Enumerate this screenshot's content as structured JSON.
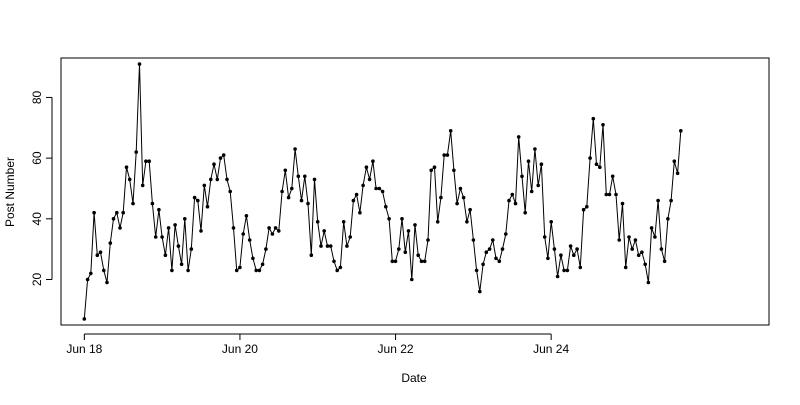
{
  "chart_data": {
    "type": "line",
    "title": "",
    "xlabel": "Date",
    "ylabel": "Post Number",
    "x_ticks": [
      "Jun 18",
      "Jun 20",
      "Jun 22",
      "Jun 24"
    ],
    "y_ticks": [
      20,
      40,
      60,
      80
    ],
    "xlim_days": [
      17.7,
      26.8
    ],
    "ylim": [
      5,
      93
    ],
    "grid": false,
    "legend": "none",
    "line_color": "#000000",
    "series": [
      {
        "points": [
          [
            "Jun 18 00:00",
            7
          ],
          [
            "Jun 18 01:00",
            20
          ],
          [
            "Jun 18 02:00",
            22
          ],
          [
            "Jun 18 03:00",
            42
          ],
          [
            "Jun 18 04:00",
            28
          ],
          [
            "Jun 18 05:00",
            29
          ],
          [
            "Jun 18 06:00",
            23
          ],
          [
            "Jun 18 07:00",
            19
          ],
          [
            "Jun 18 08:00",
            32
          ],
          [
            "Jun 18 09:00",
            40
          ],
          [
            "Jun 18 10:00",
            42
          ],
          [
            "Jun 18 11:00",
            37
          ],
          [
            "Jun 18 12:00",
            42
          ],
          [
            "Jun 18 13:00",
            57
          ],
          [
            "Jun 18 14:00",
            53
          ],
          [
            "Jun 18 15:00",
            45
          ],
          [
            "Jun 18 16:00",
            62
          ],
          [
            "Jun 18 17:00",
            91
          ],
          [
            "Jun 18 18:00",
            51
          ],
          [
            "Jun 18 19:00",
            59
          ],
          [
            "Jun 18 20:00",
            59
          ],
          [
            "Jun 18 21:00",
            45
          ],
          [
            "Jun 18 22:00",
            34
          ],
          [
            "Jun 18 23:00",
            43
          ],
          [
            "Jun 19 00:00",
            34
          ],
          [
            "Jun 19 01:00",
            28
          ],
          [
            "Jun 19 02:00",
            37
          ],
          [
            "Jun 19 03:00",
            23
          ],
          [
            "Jun 19 04:00",
            38
          ],
          [
            "Jun 19 05:00",
            31
          ],
          [
            "Jun 19 06:00",
            25
          ],
          [
            "Jun 19 07:00",
            40
          ],
          [
            "Jun 19 08:00",
            23
          ],
          [
            "Jun 19 09:00",
            30
          ],
          [
            "Jun 19 10:00",
            47
          ],
          [
            "Jun 19 11:00",
            46
          ],
          [
            "Jun 19 12:00",
            36
          ],
          [
            "Jun 19 13:00",
            51
          ],
          [
            "Jun 19 14:00",
            44
          ],
          [
            "Jun 19 15:00",
            53
          ],
          [
            "Jun 19 16:00",
            58
          ],
          [
            "Jun 19 17:00",
            53
          ],
          [
            "Jun 19 18:00",
            60
          ],
          [
            "Jun 19 19:00",
            61
          ],
          [
            "Jun 19 20:00",
            53
          ],
          [
            "Jun 19 21:00",
            49
          ],
          [
            "Jun 19 22:00",
            37
          ],
          [
            "Jun 19 23:00",
            23
          ],
          [
            "Jun 20 00:00",
            24
          ],
          [
            "Jun 20 01:00",
            35
          ],
          [
            "Jun 20 02:00",
            41
          ],
          [
            "Jun 20 03:00",
            33
          ],
          [
            "Jun 20 04:00",
            27
          ],
          [
            "Jun 20 05:00",
            23
          ],
          [
            "Jun 20 06:00",
            23
          ],
          [
            "Jun 20 07:00",
            25
          ],
          [
            "Jun 20 08:00",
            30
          ],
          [
            "Jun 20 09:00",
            37
          ],
          [
            "Jun 20 10:00",
            35
          ],
          [
            "Jun 20 11:00",
            37
          ],
          [
            "Jun 20 12:00",
            36
          ],
          [
            "Jun 20 13:00",
            49
          ],
          [
            "Jun 20 14:00",
            56
          ],
          [
            "Jun 20 15:00",
            47
          ],
          [
            "Jun 20 16:00",
            50
          ],
          [
            "Jun 20 17:00",
            63
          ],
          [
            "Jun 20 18:00",
            54
          ],
          [
            "Jun 20 19:00",
            46
          ],
          [
            "Jun 20 20:00",
            54
          ],
          [
            "Jun 20 21:00",
            45
          ],
          [
            "Jun 20 22:00",
            28
          ],
          [
            "Jun 20 23:00",
            53
          ],
          [
            "Jun 21 00:00",
            39
          ],
          [
            "Jun 21 01:00",
            31
          ],
          [
            "Jun 21 02:00",
            36
          ],
          [
            "Jun 21 03:00",
            31
          ],
          [
            "Jun 21 04:00",
            31
          ],
          [
            "Jun 21 05:00",
            26
          ],
          [
            "Jun 21 06:00",
            23
          ],
          [
            "Jun 21 07:00",
            24
          ],
          [
            "Jun 21 08:00",
            39
          ],
          [
            "Jun 21 09:00",
            31
          ],
          [
            "Jun 21 10:00",
            34
          ],
          [
            "Jun 21 11:00",
            46
          ],
          [
            "Jun 21 12:00",
            48
          ],
          [
            "Jun 21 13:00",
            42
          ],
          [
            "Jun 21 14:00",
            51
          ],
          [
            "Jun 21 15:00",
            57
          ],
          [
            "Jun 21 16:00",
            53
          ],
          [
            "Jun 21 17:00",
            59
          ],
          [
            "Jun 21 18:00",
            50
          ],
          [
            "Jun 21 19:00",
            50
          ],
          [
            "Jun 21 20:00",
            49
          ],
          [
            "Jun 21 21:00",
            44
          ],
          [
            "Jun 21 22:00",
            40
          ],
          [
            "Jun 21 23:00",
            26
          ],
          [
            "Jun 22 00:00",
            26
          ],
          [
            "Jun 22 01:00",
            30
          ],
          [
            "Jun 22 02:00",
            40
          ],
          [
            "Jun 22 03:00",
            29
          ],
          [
            "Jun 22 04:00",
            36
          ],
          [
            "Jun 22 05:00",
            20
          ],
          [
            "Jun 22 06:00",
            38
          ],
          [
            "Jun 22 07:00",
            28
          ],
          [
            "Jun 22 08:00",
            26
          ],
          [
            "Jun 22 09:00",
            26
          ],
          [
            "Jun 22 10:00",
            33
          ],
          [
            "Jun 22 11:00",
            56
          ],
          [
            "Jun 22 12:00",
            57
          ],
          [
            "Jun 22 13:00",
            39
          ],
          [
            "Jun 22 14:00",
            47
          ],
          [
            "Jun 22 15:00",
            61
          ],
          [
            "Jun 22 16:00",
            61
          ],
          [
            "Jun 22 17:00",
            69
          ],
          [
            "Jun 22 18:00",
            56
          ],
          [
            "Jun 22 19:00",
            45
          ],
          [
            "Jun 22 20:00",
            50
          ],
          [
            "Jun 22 21:00",
            47
          ],
          [
            "Jun 22 22:00",
            39
          ],
          [
            "Jun 22 23:00",
            43
          ],
          [
            "Jun 23 00:00",
            33
          ],
          [
            "Jun 23 01:00",
            23
          ],
          [
            "Jun 23 02:00",
            16
          ],
          [
            "Jun 23 03:00",
            25
          ],
          [
            "Jun 23 04:00",
            29
          ],
          [
            "Jun 23 05:00",
            30
          ],
          [
            "Jun 23 06:00",
            33
          ],
          [
            "Jun 23 07:00",
            27
          ],
          [
            "Jun 23 08:00",
            26
          ],
          [
            "Jun 23 09:00",
            30
          ],
          [
            "Jun 23 10:00",
            35
          ],
          [
            "Jun 23 11:00",
            46
          ],
          [
            "Jun 23 12:00",
            48
          ],
          [
            "Jun 23 13:00",
            45
          ],
          [
            "Jun 23 14:00",
            67
          ],
          [
            "Jun 23 15:00",
            54
          ],
          [
            "Jun 23 16:00",
            42
          ],
          [
            "Jun 23 17:00",
            59
          ],
          [
            "Jun 23 18:00",
            49
          ],
          [
            "Jun 23 19:00",
            63
          ],
          [
            "Jun 23 20:00",
            51
          ],
          [
            "Jun 23 21:00",
            58
          ],
          [
            "Jun 23 22:00",
            34
          ],
          [
            "Jun 23 23:00",
            27
          ],
          [
            "Jun 24 00:00",
            39
          ],
          [
            "Jun 24 01:00",
            30
          ],
          [
            "Jun 24 02:00",
            21
          ],
          [
            "Jun 24 03:00",
            28
          ],
          [
            "Jun 24 04:00",
            23
          ],
          [
            "Jun 24 05:00",
            23
          ],
          [
            "Jun 24 06:00",
            31
          ],
          [
            "Jun 24 07:00",
            28
          ],
          [
            "Jun 24 08:00",
            30
          ],
          [
            "Jun 24 09:00",
            24
          ],
          [
            "Jun 24 10:00",
            43
          ],
          [
            "Jun 24 11:00",
            44
          ],
          [
            "Jun 24 12:00",
            60
          ],
          [
            "Jun 24 13:00",
            73
          ],
          [
            "Jun 24 14:00",
            58
          ],
          [
            "Jun 24 15:00",
            57
          ],
          [
            "Jun 24 16:00",
            71
          ],
          [
            "Jun 24 17:00",
            48
          ],
          [
            "Jun 24 18:00",
            48
          ],
          [
            "Jun 24 19:00",
            54
          ],
          [
            "Jun 24 20:00",
            48
          ],
          [
            "Jun 24 21:00",
            33
          ],
          [
            "Jun 24 22:00",
            45
          ],
          [
            "Jun 24 23:00",
            24
          ],
          [
            "Jun 25 00:00",
            34
          ],
          [
            "Jun 25 01:00",
            30
          ],
          [
            "Jun 25 02:00",
            33
          ],
          [
            "Jun 25 03:00",
            28
          ],
          [
            "Jun 25 04:00",
            29
          ],
          [
            "Jun 25 05:00",
            25
          ],
          [
            "Jun 25 06:00",
            19
          ],
          [
            "Jun 25 07:00",
            37
          ],
          [
            "Jun 25 08:00",
            34
          ],
          [
            "Jun 25 09:00",
            46
          ],
          [
            "Jun 25 10:00",
            30
          ],
          [
            "Jun 25 11:00",
            26
          ],
          [
            "Jun 25 12:00",
            40
          ],
          [
            "Jun 25 13:00",
            46
          ],
          [
            "Jun 25 14:00",
            59
          ],
          [
            "Jun 25 15:00",
            55
          ],
          [
            "Jun 25 16:00",
            69
          ]
        ]
      }
    ]
  }
}
